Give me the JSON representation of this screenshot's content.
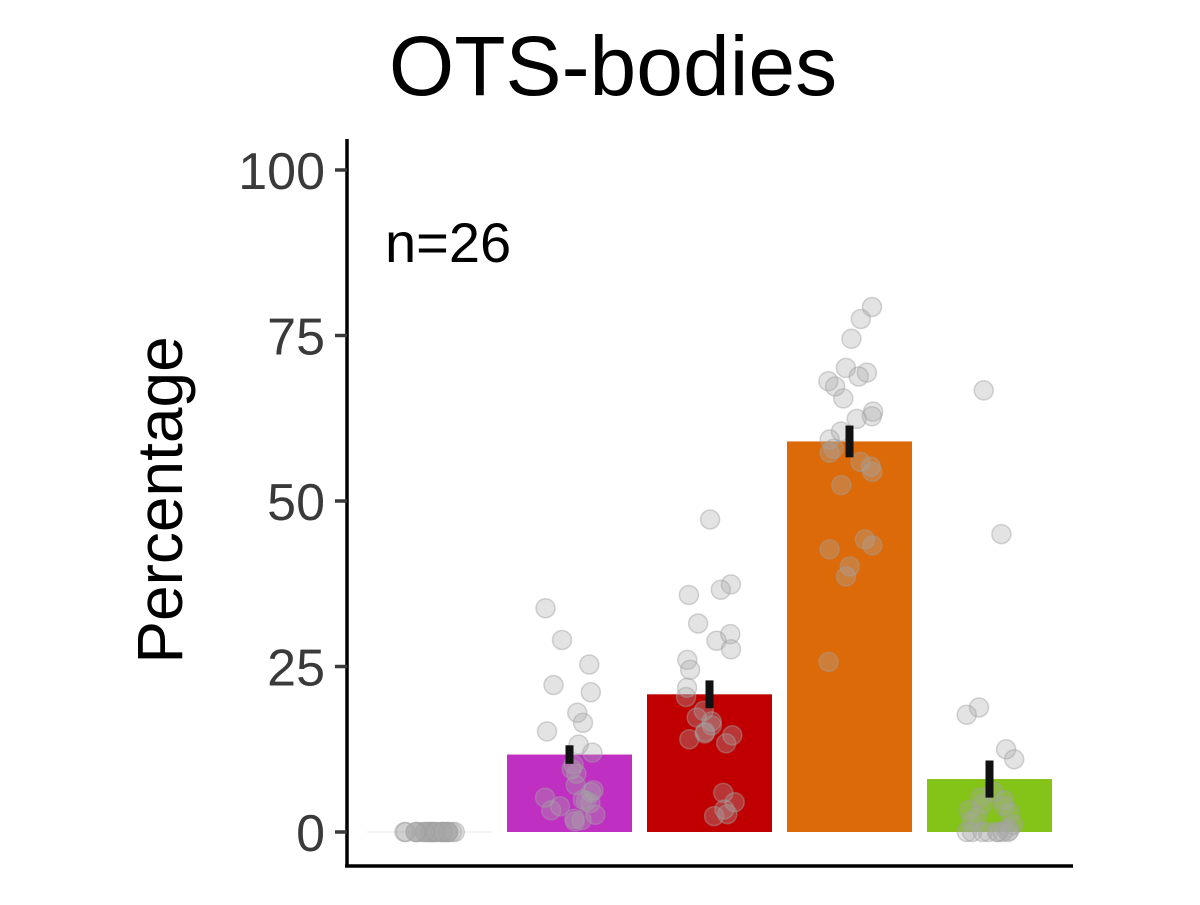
{
  "chart_data": {
    "type": "bar",
    "title": "OTS-bodies",
    "xlabel": "",
    "ylabel": "Percentage",
    "annotation": "n=26",
    "ylim": [
      -5,
      105
    ],
    "yticks": [
      0,
      25,
      50,
      75,
      100
    ],
    "grid": false,
    "legend": "none",
    "bars": [
      {
        "value": 0,
        "error": 0,
        "color": "#e8e8e8"
      },
      {
        "value": 11.7,
        "error": 1.4,
        "color": "#bf2fc2"
      },
      {
        "value": 20.8,
        "error": 2.1,
        "color": "#c00000"
      },
      {
        "value": 59.0,
        "error": 2.4,
        "color": "#dd6a08"
      },
      {
        "value": 8.0,
        "error": 2.8,
        "color": "#84c318"
      }
    ],
    "points": [
      [
        0,
        0,
        0,
        0,
        0,
        0,
        0,
        0,
        0,
        0,
        0,
        0,
        0,
        0,
        0,
        0,
        0,
        0,
        0,
        0,
        0,
        0,
        0,
        0,
        0,
        0
      ],
      [
        33.8,
        29,
        25.3,
        22.2,
        21.1,
        18,
        16.5,
        15.2,
        13.2,
        12,
        10.2,
        9.5,
        8.8,
        7.1,
        6.3,
        6,
        5.2,
        4.7,
        4.4,
        3.9,
        3.3,
        2.6,
        2,
        1.8,
        1.6,
        4.9
      ],
      [
        47.2,
        37.4,
        36.6,
        35.8,
        31.5,
        29.9,
        28.9,
        27.6,
        26,
        24.5,
        21.8,
        20.4,
        17.3,
        16.7,
        16.1,
        15.1,
        14.9,
        14.6,
        14,
        13.4,
        5.9,
        4.5,
        3.4,
        2.7,
        2.4,
        18.3
      ],
      [
        79.3,
        77.5,
        74.5,
        70.1,
        69.4,
        68.8,
        68.1,
        63.5,
        62.8,
        62.4,
        59.3,
        57.9,
        57.3,
        55.9,
        55.2,
        54.4,
        52.4,
        44.2,
        43.3,
        42.7,
        40.1,
        38.6,
        25.7,
        60.5,
        65.5,
        67.3
      ],
      [
        66.7,
        45,
        18.8,
        17.7,
        12.5,
        11,
        6.1,
        5.2,
        4.8,
        4.2,
        3.9,
        3.3,
        2.9,
        2.4,
        1.6,
        1.1,
        0.6,
        0.2,
        0,
        0,
        0,
        0,
        0,
        0,
        0,
        0
      ]
    ]
  }
}
